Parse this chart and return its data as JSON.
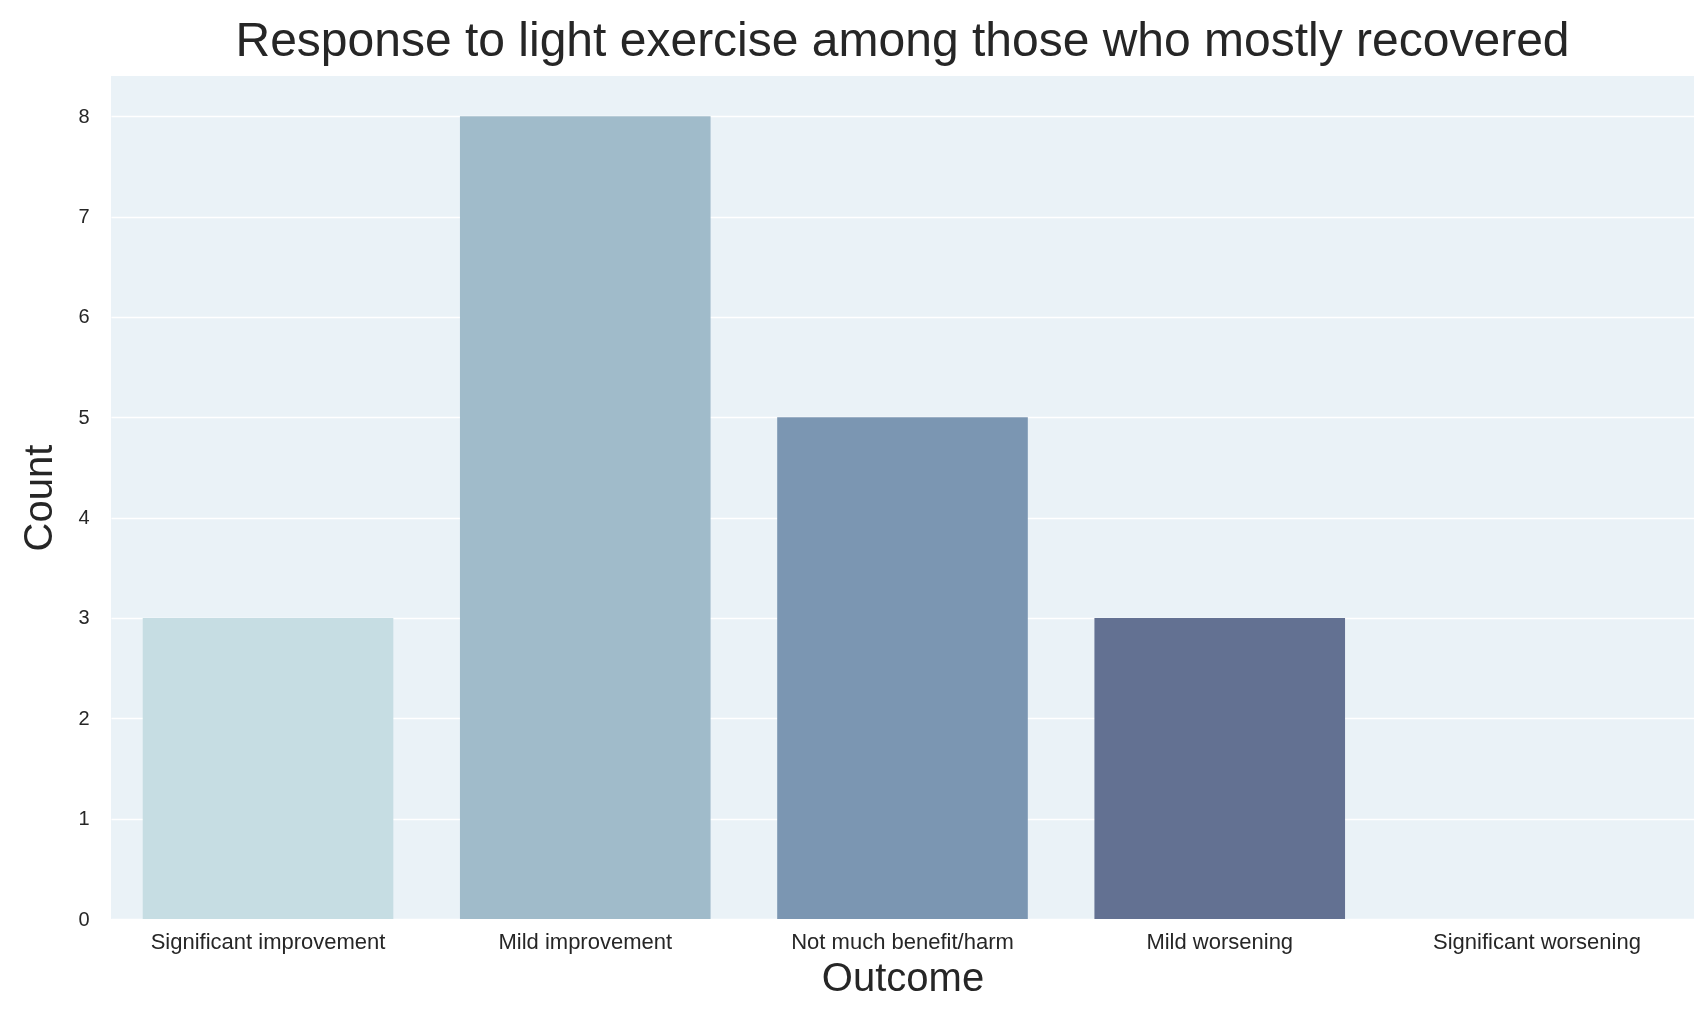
{
  "chart_data": {
    "type": "bar",
    "title": "Response to light exercise among those who mostly recovered",
    "xlabel": "Outcome",
    "ylabel": "Count",
    "categories": [
      "Significant improvement",
      "Mild improvement",
      "Not much benefit/harm",
      "Mild worsening",
      "Significant worsening"
    ],
    "values": [
      3,
      8,
      5,
      3,
      0
    ],
    "colors": [
      "#c6dde3",
      "#a0bbca",
      "#7b96b2",
      "#637192",
      "#4d4f72"
    ],
    "ylim": [
      0,
      8.4
    ],
    "yticks": [
      0,
      1,
      2,
      3,
      4,
      5,
      6,
      7,
      8
    ],
    "grid": "y"
  }
}
